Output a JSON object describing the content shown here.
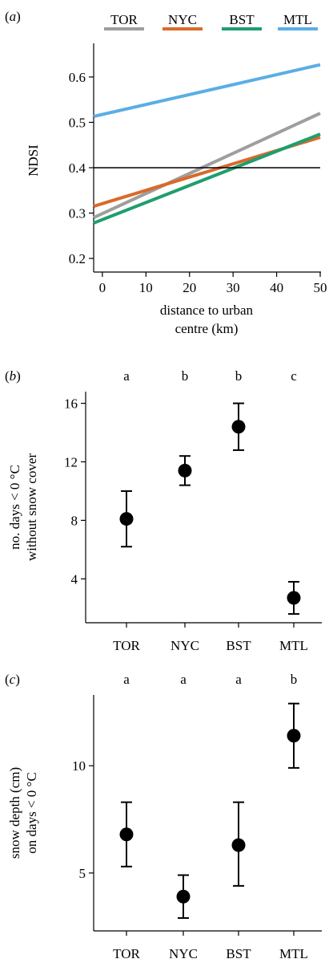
{
  "chart_data": [
    {
      "type": "line",
      "panel_label": "(a)",
      "xlabel_line1": "distance to urban",
      "xlabel_line2": "centre (km)",
      "ylabel": "NDSI",
      "xlim": [
        -2,
        50
      ],
      "ylim": [
        0.17,
        0.66
      ],
      "xticks": [
        "0",
        "10",
        "20",
        "30",
        "40",
        "50"
      ],
      "yticks": [
        "0.2",
        "0.3",
        "0.4",
        "0.5",
        "0.6"
      ],
      "reference_line_y": 0.4,
      "legend_position": "top",
      "series": [
        {
          "name": "TOR",
          "color": "#9e9e9e",
          "x": [
            -2,
            50
          ],
          "y": [
            0.29,
            0.52
          ]
        },
        {
          "name": "NYC",
          "color": "#d96a2c",
          "x": [
            -2,
            50
          ],
          "y": [
            0.315,
            0.467
          ]
        },
        {
          "name": "BST",
          "color": "#1f9e6e",
          "x": [
            -2,
            50
          ],
          "y": [
            0.278,
            0.474
          ]
        },
        {
          "name": "MTL",
          "color": "#5aaee4",
          "x": [
            -2,
            50
          ],
          "y": [
            0.513,
            0.627
          ]
        }
      ]
    },
    {
      "type": "scatter",
      "panel_label": "(b)",
      "ylabel_line1": "no. days < 0 °C",
      "ylabel_line2": "without snow cover",
      "categories": [
        "TOR",
        "NYC",
        "BST",
        "MTL"
      ],
      "group_letters": [
        "a",
        "b",
        "b",
        "c"
      ],
      "values": [
        8.1,
        11.4,
        14.4,
        2.7
      ],
      "lower": [
        6.2,
        10.4,
        12.8,
        1.6
      ],
      "upper": [
        10.0,
        12.4,
        16.0,
        3.8
      ],
      "ylim": [
        1.0,
        16.8
      ],
      "yticks": [
        "4",
        "8",
        "12",
        "16"
      ]
    },
    {
      "type": "scatter",
      "panel_label": "(c)",
      "ylabel_line1": "snow depth (cm)",
      "ylabel_line2": "on days < 0 °C",
      "categories": [
        "TOR",
        "NYC",
        "BST",
        "MTL"
      ],
      "group_letters": [
        "a",
        "a",
        "a",
        "b"
      ],
      "values": [
        6.8,
        3.9,
        6.3,
        11.4
      ],
      "lower": [
        5.3,
        2.9,
        4.4,
        9.9
      ],
      "upper": [
        8.3,
        4.9,
        8.3,
        12.9
      ],
      "ylim": [
        2.3,
        13.3
      ],
      "yticks": [
        "5",
        "10"
      ]
    }
  ]
}
